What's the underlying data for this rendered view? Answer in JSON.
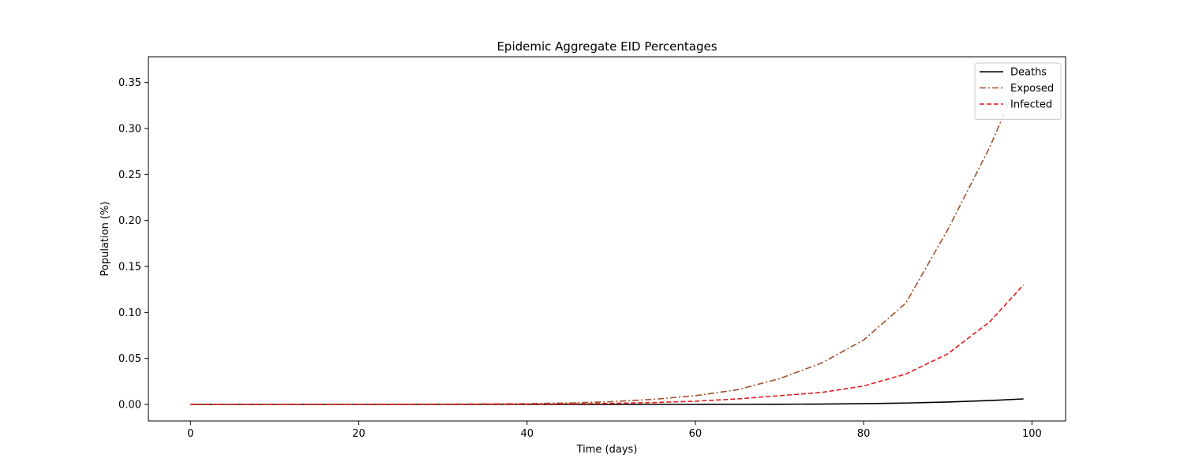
{
  "chart_data": {
    "type": "line",
    "title": "Epidemic Aggregate EID Percentages",
    "xlabel": "Time (days)",
    "ylabel": "Population (%)",
    "xlim": [
      -5,
      104
    ],
    "ylim": [
      -0.018,
      0.378
    ],
    "x_ticks": [
      0,
      20,
      40,
      60,
      80,
      100
    ],
    "x_tick_labels": [
      "0",
      "20",
      "40",
      "60",
      "80",
      "100"
    ],
    "y_ticks": [
      0.0,
      0.05,
      0.1,
      0.15,
      0.2,
      0.25,
      0.3,
      0.35
    ],
    "y_tick_labels": [
      "0.00",
      "0.05",
      "0.10",
      "0.15",
      "0.20",
      "0.25",
      "0.30",
      "0.35"
    ],
    "grid": false,
    "legend_position": "top-right",
    "x": [
      0,
      10,
      20,
      30,
      40,
      45,
      50,
      55,
      60,
      65,
      70,
      75,
      80,
      85,
      90,
      95,
      99
    ],
    "series": [
      {
        "name": "Deaths",
        "color": "#000000",
        "style": "solid",
        "values": [
          0,
          0,
          0,
          0,
          0,
          0,
          0,
          0,
          0,
          0.0001,
          0.0002,
          0.0004,
          0.0008,
          0.0015,
          0.0026,
          0.0042,
          0.006
        ]
      },
      {
        "name": "Exposed",
        "color": "#a0522d",
        "style": "dashdot",
        "values": [
          0,
          0,
          0.0001,
          0.0003,
          0.0008,
          0.0016,
          0.003,
          0.0055,
          0.0095,
          0.016,
          0.028,
          0.045,
          0.07,
          0.11,
          0.19,
          0.28,
          0.365
        ]
      },
      {
        "name": "Infected",
        "color": "#e31a1c",
        "style": "dashed",
        "values": [
          0,
          0,
          0,
          0.0001,
          0.0003,
          0.0006,
          0.0011,
          0.002,
          0.0035,
          0.006,
          0.0095,
          0.013,
          0.02,
          0.033,
          0.055,
          0.09,
          0.13
        ]
      }
    ]
  }
}
